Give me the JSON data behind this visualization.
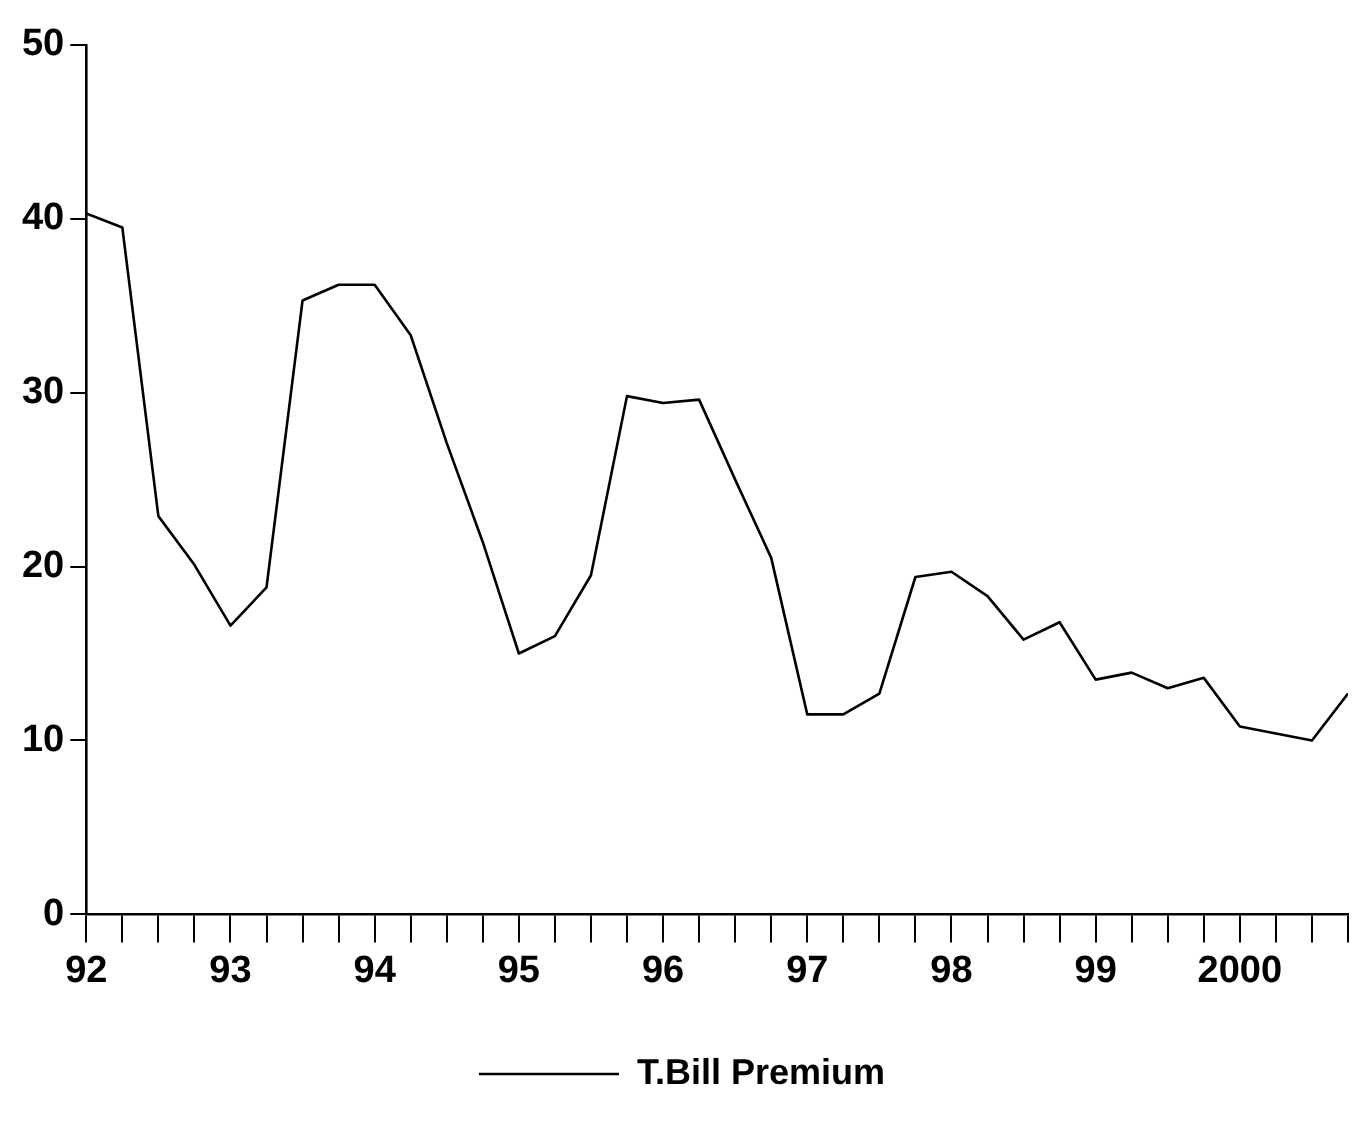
{
  "chart_data": {
    "type": "line",
    "x": [
      1992,
      1992.25,
      1992.5,
      1992.75,
      1993,
      1993.25,
      1993.5,
      1993.75,
      1994,
      1994.25,
      1994.5,
      1994.75,
      1995,
      1995.25,
      1995.5,
      1995.75,
      1996,
      1996.25,
      1996.5,
      1996.75,
      1997,
      1997.25,
      1997.5,
      1997.75,
      1998,
      1998.25,
      1998.5,
      1998.75,
      1999,
      1999.25,
      1999.5,
      1999.75,
      2000,
      2000.25,
      2000.5,
      2000.75
    ],
    "series": [
      {
        "name": "T.Bill Premium",
        "color": "#000000",
        "values": [
          40.3,
          39.5,
          22.9,
          20.1,
          16.6,
          18.8,
          35.3,
          36.2,
          36.2,
          33.3,
          27.1,
          21.4,
          15.0,
          16.0,
          19.5,
          29.8,
          29.4,
          29.6,
          25.0,
          20.5,
          11.5,
          11.5,
          12.7,
          19.4,
          19.7,
          18.3,
          15.8,
          16.8,
          13.5,
          13.9,
          13.0,
          13.6,
          10.8,
          10.4,
          10.0,
          12.7
        ]
      }
    ],
    "xlim": [
      1992,
      2000.75
    ],
    "xticks": [
      {
        "value": 1992,
        "label": "92"
      },
      {
        "value": 1992.25,
        "label": null
      },
      {
        "value": 1992.5,
        "label": null
      },
      {
        "value": 1992.75,
        "label": null
      },
      {
        "value": 1993,
        "label": "93"
      },
      {
        "value": 1993.25,
        "label": null
      },
      {
        "value": 1993.5,
        "label": null
      },
      {
        "value": 1993.75,
        "label": null
      },
      {
        "value": 1994,
        "label": "94"
      },
      {
        "value": 1994.25,
        "label": null
      },
      {
        "value": 1994.5,
        "label": null
      },
      {
        "value": 1994.75,
        "label": null
      },
      {
        "value": 1995,
        "label": "95"
      },
      {
        "value": 1995.25,
        "label": null
      },
      {
        "value": 1995.5,
        "label": null
      },
      {
        "value": 1995.75,
        "label": null
      },
      {
        "value": 1996,
        "label": "96"
      },
      {
        "value": 1996.25,
        "label": null
      },
      {
        "value": 1996.5,
        "label": null
      },
      {
        "value": 1996.75,
        "label": null
      },
      {
        "value": 1997,
        "label": "97"
      },
      {
        "value": 1997.25,
        "label": null
      },
      {
        "value": 1997.5,
        "label": null
      },
      {
        "value": 1997.75,
        "label": null
      },
      {
        "value": 1998,
        "label": "98"
      },
      {
        "value": 1998.25,
        "label": null
      },
      {
        "value": 1998.5,
        "label": null
      },
      {
        "value": 1998.75,
        "label": null
      },
      {
        "value": 1999,
        "label": "99"
      },
      {
        "value": 1999.25,
        "label": null
      },
      {
        "value": 1999.5,
        "label": null
      },
      {
        "value": 1999.75,
        "label": null
      },
      2000,
      {
        "value": 2000.25,
        "label": null
      },
      {
        "value": 2000.5,
        "label": null
      },
      {
        "value": 2000.75,
        "label": null
      }
    ],
    "ylim": [
      0,
      50
    ],
    "yticks": [
      0,
      10,
      20,
      30,
      40,
      50
    ],
    "grid": false,
    "legend": "bottom",
    "marker": "none",
    "line_style": "solid"
  }
}
